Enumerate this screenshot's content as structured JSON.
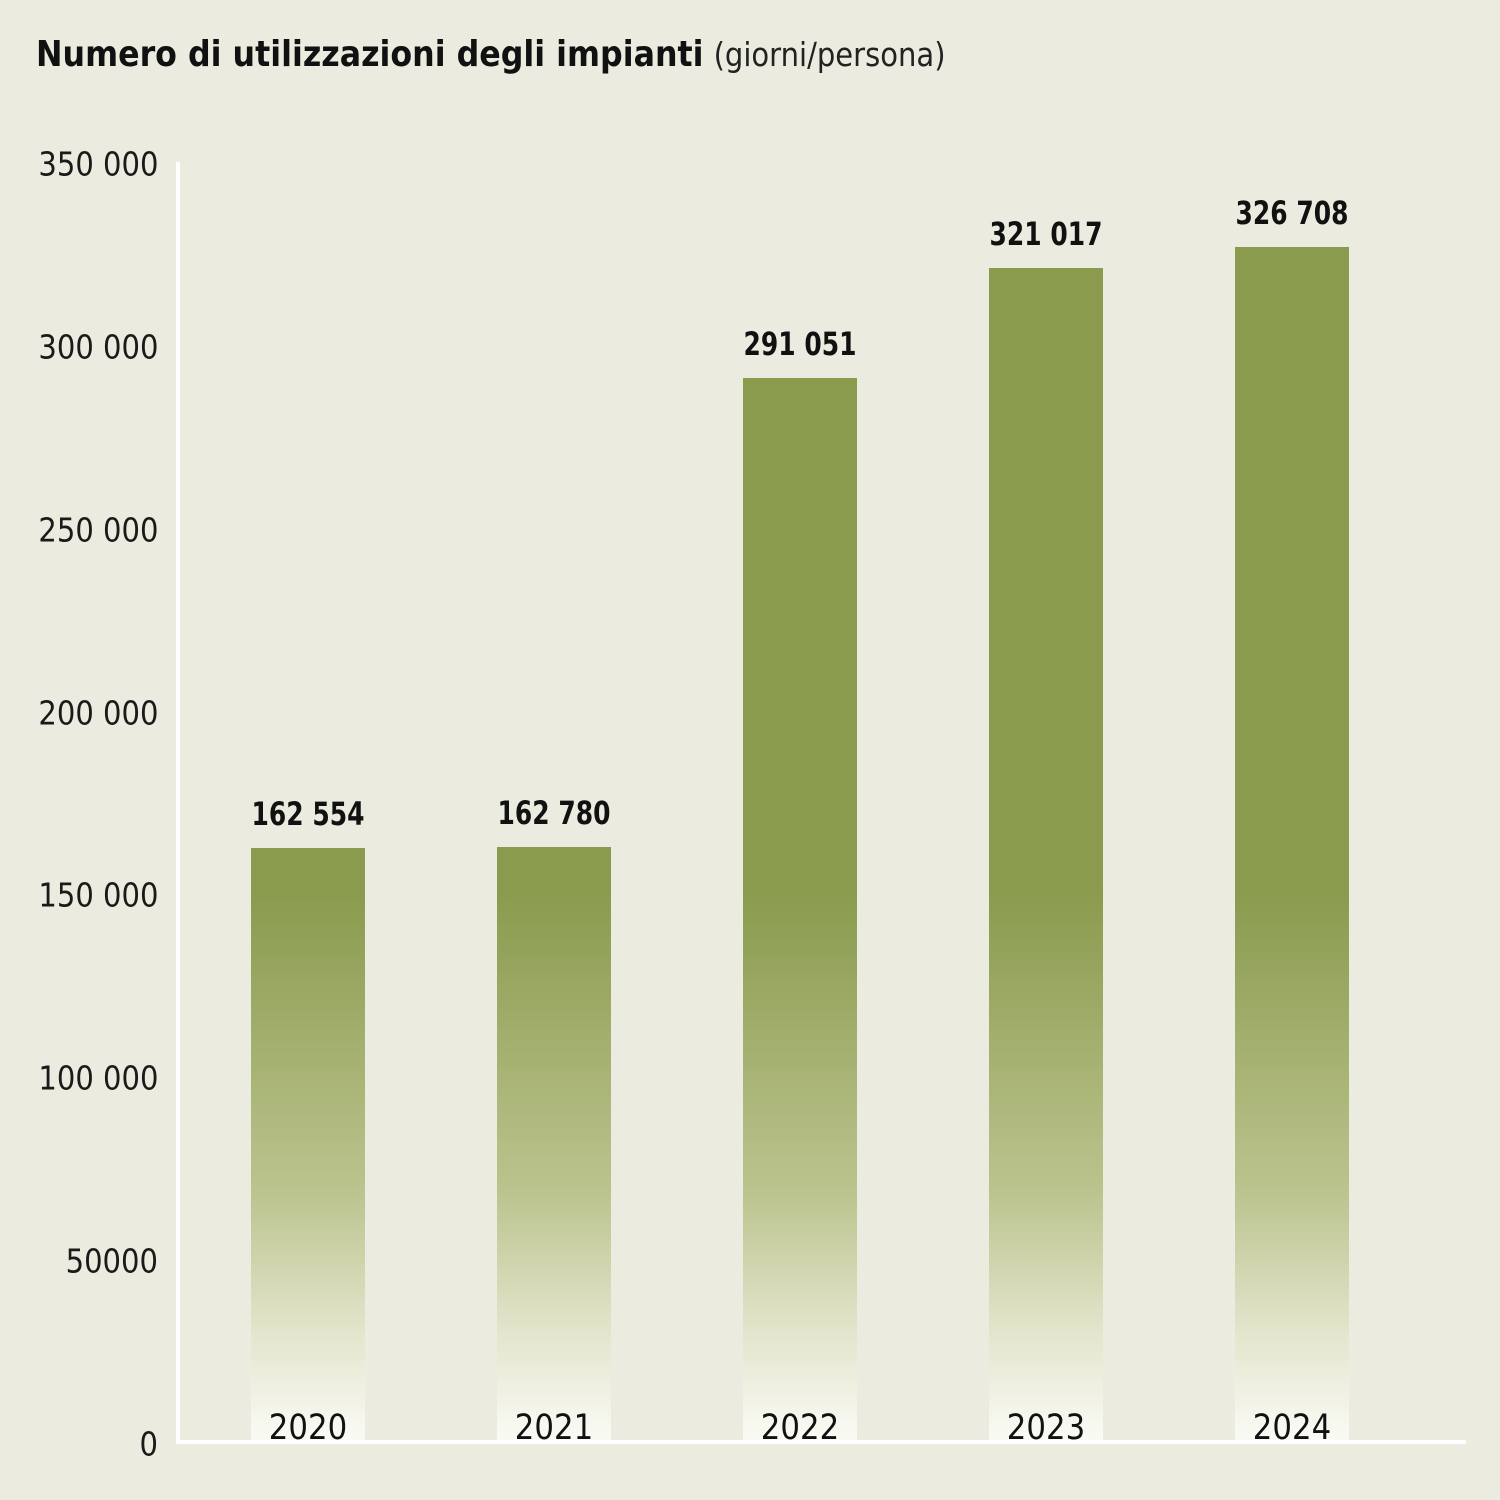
{
  "title": {
    "main": "Numero di utilizzazioni degli impianti",
    "unit": "(giorni/persona)"
  },
  "colors": {
    "background": "#ecebdf",
    "bar_top": "#8a9b4e",
    "bar_bottom": "#fbfbf6",
    "axis": "#ffffff"
  },
  "y_axis": {
    "ticks": [
      {
        "value": 350000,
        "label": "350 000"
      },
      {
        "value": 300000,
        "label": "300 000"
      },
      {
        "value": 250000,
        "label": "250 000"
      },
      {
        "value": 200000,
        "label": "200 000"
      },
      {
        "value": 150000,
        "label": "150 000"
      },
      {
        "value": 100000,
        "label": "100 000"
      },
      {
        "value": 50000,
        "label": "50000"
      },
      {
        "value": 0,
        "label": "0"
      }
    ]
  },
  "bars": [
    {
      "year": "2020",
      "value": 162554,
      "label": "162 554"
    },
    {
      "year": "2021",
      "value": 162780,
      "label": "162 780"
    },
    {
      "year": "2022",
      "value": 291051,
      "label": "291 051"
    },
    {
      "year": "2023",
      "value": 321017,
      "label": "321 017"
    },
    {
      "year": "2024",
      "value": 326708,
      "label": "326 708"
    }
  ],
  "chart_data": {
    "type": "bar",
    "title": "Numero di utilizzazioni degli impianti (giorni/persona)",
    "xlabel": "",
    "ylabel": "",
    "categories": [
      "2020",
      "2021",
      "2022",
      "2023",
      "2024"
    ],
    "values": [
      162554,
      162780,
      291051,
      321017,
      326708
    ],
    "data_labels": [
      "162 554",
      "162 780",
      "291 051",
      "321 017",
      "326 708"
    ],
    "ylim": [
      0,
      350000
    ],
    "yticks": [
      0,
      50000,
      100000,
      150000,
      200000,
      250000,
      300000,
      350000
    ],
    "ytick_labels": [
      "0",
      "50000",
      "100 000",
      "150 000",
      "200 000",
      "250 000",
      "300 000",
      "350 000"
    ],
    "grid": false,
    "legend": null,
    "bar_style": "vertical gradient, olive green (#8a9b4e) fading to near-white at baseline"
  }
}
